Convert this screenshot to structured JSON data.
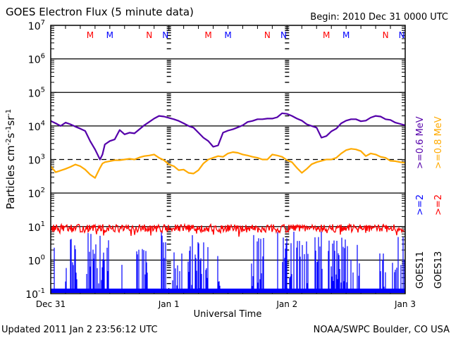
{
  "chart_data": {
    "type": "line",
    "title": "GOES Electron Flux (5 minute data)",
    "begin_label": "Begin: 2010 Dec 31 0000 UTC",
    "xlabel": "Universal Time",
    "ylabel": "Particles cm-2s-1sr-1",
    "ylim_log10": [
      -1,
      7
    ],
    "yticks": [
      {
        "base": "10",
        "exp": "7"
      },
      {
        "base": "10",
        "exp": "6"
      },
      {
        "base": "10",
        "exp": "5"
      },
      {
        "base": "10",
        "exp": "4"
      },
      {
        "base": "10",
        "exp": "3"
      },
      {
        "base": "10",
        "exp": "2"
      },
      {
        "base": "10",
        "exp": "1"
      },
      {
        "base": "10",
        "exp": "0"
      },
      {
        "base": "10",
        "exp": "-1"
      }
    ],
    "xlim_hours": [
      0,
      72
    ],
    "xticks": [
      {
        "label": "Dec 31",
        "hour": 0
      },
      {
        "label": "Jan 1",
        "hour": 24
      },
      {
        "label": "Jan 2",
        "hour": 48
      },
      {
        "label": "Jan 3",
        "hour": 72
      }
    ],
    "threshold_log10": 3,
    "grid_lines_log10": [
      6,
      5,
      4,
      2,
      1,
      0
    ],
    "markers": [
      {
        "label": "M",
        "hour": 8.0,
        "color": "#ff0000"
      },
      {
        "label": "M",
        "hour": 12.0,
        "color": "#0000ff"
      },
      {
        "label": "N",
        "hour": 20.0,
        "color": "#ff0000"
      },
      {
        "label": "N",
        "hour": 23.3,
        "color": "#0000ff"
      },
      {
        "label": "M",
        "hour": 32.0,
        "color": "#ff0000"
      },
      {
        "label": "M",
        "hour": 36.0,
        "color": "#0000ff"
      },
      {
        "label": "N",
        "hour": 44.0,
        "color": "#ff0000"
      },
      {
        "label": "N",
        "hour": 47.3,
        "color": "#0000ff"
      },
      {
        "label": "M",
        "hour": 56.0,
        "color": "#ff0000"
      },
      {
        "label": "M",
        "hour": 60.0,
        "color": "#0000ff"
      },
      {
        "label": "N",
        "hour": 68.0,
        "color": "#ff0000"
      },
      {
        "label": "N",
        "hour": 71.3,
        "color": "#0000ff"
      }
    ],
    "series": [
      {
        "name": "GOES11 >=0.6 MeV",
        "color": "#5500aa",
        "x_hours": [
          0,
          1,
          2,
          3,
          4,
          5,
          6,
          7,
          8,
          9,
          10,
          10.5,
          11,
          12,
          13,
          14,
          15,
          16,
          17,
          18,
          19,
          20,
          21,
          22,
          23,
          24,
          25,
          26,
          27,
          28,
          29,
          30,
          31,
          32,
          33,
          34,
          35,
          36,
          37,
          38,
          39,
          40,
          41,
          42,
          43,
          44,
          45,
          46,
          47,
          48,
          49,
          50,
          51,
          52,
          53,
          54,
          55,
          56,
          57,
          58,
          59,
          60,
          61,
          62,
          63,
          64,
          65,
          66,
          67,
          68,
          69,
          70,
          71,
          72
        ],
        "log10_values": [
          4.15,
          4.08,
          4.0,
          4.1,
          4.05,
          3.98,
          3.92,
          3.85,
          3.55,
          3.3,
          3.0,
          3.15,
          3.45,
          3.55,
          3.6,
          3.88,
          3.75,
          3.8,
          3.78,
          3.9,
          4.02,
          4.12,
          4.22,
          4.3,
          4.28,
          4.24,
          4.2,
          4.15,
          4.08,
          4.0,
          3.95,
          3.8,
          3.65,
          3.55,
          3.38,
          3.42,
          3.8,
          3.86,
          3.9,
          3.96,
          4.02,
          4.12,
          4.15,
          4.2,
          4.2,
          4.22,
          4.22,
          4.26,
          4.38,
          4.36,
          4.3,
          4.22,
          4.16,
          4.05,
          4.0,
          3.95,
          3.65,
          3.7,
          3.84,
          3.92,
          4.08,
          4.16,
          4.2,
          4.2,
          4.14,
          4.16,
          4.25,
          4.3,
          4.28,
          4.2,
          4.18,
          4.1,
          4.06,
          4.02
        ]
      },
      {
        "name": "GOES13 >=0.8 MeV",
        "color": "#ffaa00",
        "x_hours": [
          0,
          1,
          2,
          3,
          4,
          5,
          6,
          7,
          8,
          9,
          10,
          10.5,
          11,
          12,
          13,
          14,
          15,
          16,
          17,
          18,
          19,
          20,
          21,
          22,
          23,
          24,
          25,
          26,
          27,
          28,
          29,
          30,
          31,
          32,
          33,
          34,
          35,
          36,
          37,
          38,
          39,
          40,
          41,
          42,
          43,
          44,
          45,
          46,
          47,
          48,
          49,
          50,
          51,
          52,
          53,
          54,
          55,
          56,
          57,
          58,
          59,
          60,
          61,
          62,
          63,
          64,
          65,
          66,
          67,
          68,
          69,
          70,
          71,
          72
        ],
        "log10_values": [
          2.8,
          2.62,
          2.67,
          2.72,
          2.78,
          2.85,
          2.8,
          2.7,
          2.55,
          2.45,
          2.75,
          2.88,
          2.92,
          2.95,
          2.98,
          2.98,
          3.0,
          3.02,
          3.0,
          3.06,
          3.1,
          3.12,
          3.15,
          3.05,
          2.98,
          2.85,
          2.8,
          2.68,
          2.7,
          2.6,
          2.58,
          2.68,
          2.88,
          3.0,
          3.05,
          3.1,
          3.08,
          3.18,
          3.22,
          3.2,
          3.15,
          3.12,
          3.08,
          3.05,
          3.0,
          3.0,
          3.15,
          3.12,
          3.08,
          2.98,
          2.92,
          2.75,
          2.6,
          2.72,
          2.86,
          2.92,
          2.96,
          3.0,
          3.0,
          3.05,
          3.18,
          3.28,
          3.32,
          3.3,
          3.25,
          3.1,
          3.18,
          3.15,
          3.08,
          3.05,
          2.96,
          2.95,
          2.92,
          2.9
        ]
      },
      {
        "name": "GOES13 >=2 MeV",
        "color": "#ff0000",
        "kind": "noise",
        "center_log10": 0.97,
        "noise_amplitude_log10": 0.12,
        "seed": 13
      },
      {
        "name": "GOES11 >=2 MeV",
        "color": "#0000ff",
        "kind": "spikes",
        "floor_log10": -0.85,
        "max_log10": 0.85,
        "seed": 11
      }
    ],
    "legend": {
      "col1": {
        "sat": "GOES11",
        "low": ">=2",
        "high": ">=0.6 MeV"
      },
      "col2": {
        "sat": "GOES13",
        "low": ">=2",
        "high": ">=0.8 MeV"
      },
      "placement": "right"
    }
  },
  "footer": {
    "updated": "Updated 2011 Jan  2 23:56:12 UTC",
    "credit": "NOAA/SWPC Boulder, CO USA"
  }
}
